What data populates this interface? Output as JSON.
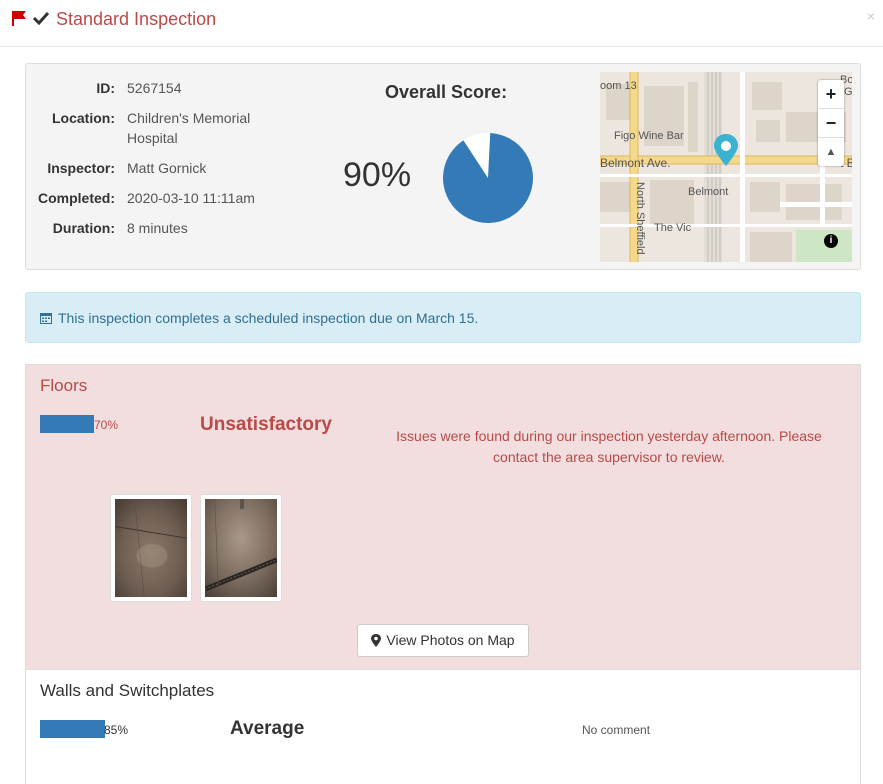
{
  "header": {
    "title": "Standard Inspection",
    "close_glyph": "×",
    "icons": [
      "flag-icon",
      "check-icon",
      "close-icon"
    ],
    "flag_color": "#cc0000"
  },
  "summary": {
    "fields": [
      {
        "label": "ID:",
        "value": "5267154"
      },
      {
        "label": "Location:",
        "value": "Children's Memorial Hospital"
      },
      {
        "label": "Inspector:",
        "value": "Matt Gornick"
      },
      {
        "label": "Completed:",
        "value": "2020-03-10 11:11am"
      },
      {
        "label": "Duration:",
        "value": "8 minutes"
      }
    ],
    "score_title": "Overall Score:",
    "score_value": "90%",
    "score_fraction": 0.9,
    "pie_color": "#337ab7"
  },
  "map": {
    "labels": {
      "room": "oom 13",
      "wine_bar": "Figo Wine Bar",
      "avenue": "Belmont Ave.",
      "avenue_right": "t B",
      "station": "Belmont",
      "the_vic": "The Vic",
      "street": "North Sheffield",
      "corner_top": "Bo",
      "corner_g": "G"
    },
    "zoom_in": "+",
    "zoom_out": "−",
    "compass": "▲",
    "info": "i",
    "marker_color": "#3bb2d0"
  },
  "alert": {
    "text": "This inspection completes a scheduled inspection due on March 15.",
    "icon": "calendar-icon"
  },
  "sections": [
    {
      "title": "Floors",
      "percent_label": "70%",
      "percent": 0.7,
      "rating": "Unsatisfactory",
      "comment": "Issues were found during our inspection yesterday afternoon. Please contact the area supervisor to review.",
      "photos": [
        "floor-photo-1",
        "floor-photo-2"
      ],
      "button_label": "View Photos on Map"
    },
    {
      "title": "Walls and Switchplates",
      "percent_label": "85%",
      "percent": 0.85,
      "rating": "Average",
      "comment": "No comment"
    }
  ],
  "colors": {
    "danger": "#b94a48",
    "danger_bg": "#f2dede",
    "info_bg": "#d9edf7",
    "info_text": "#31708f",
    "bar": "#337ab7"
  }
}
